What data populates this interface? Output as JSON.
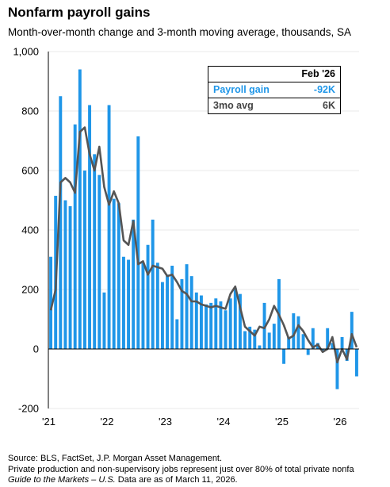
{
  "title": "Nonfarm payroll gains",
  "subtitle": "Month-over-month change and 3-month moving average, thousands, SA",
  "legend": {
    "header": "Feb '26",
    "rows": [
      {
        "label": "Payroll gain",
        "value": "-92K",
        "color": "#1f96e8"
      },
      {
        "label": "3mo avg",
        "value": "6K",
        "color": "#444444"
      }
    ]
  },
  "footer": {
    "line1": "Source: BLS, FactSet, J.P. Morgan Asset Management.",
    "line2": "Private production and non-supervisory jobs represent just over 80% of total private nonfa",
    "line3_italic": "Guide to the Markets – U.S.",
    "line3_rest": " Data are as of March 11, 2026."
  },
  "chart_data": {
    "type": "bar",
    "title": "Nonfarm payroll gains",
    "ylabel": "thousands",
    "ylim": [
      -200,
      1000
    ],
    "yticks": [
      -200,
      0,
      200,
      400,
      600,
      800,
      1000
    ],
    "ytick_labels": [
      "-200",
      "0",
      "200",
      "400",
      "600",
      "800",
      "1,000"
    ],
    "xtick_labels": [
      "'21",
      "'22",
      "'23",
      "'24",
      "'25",
      "'26"
    ],
    "start_month": "2021-01",
    "series": [
      {
        "name": "Payroll gain",
        "kind": "bar",
        "color": "#1f96e8",
        "values": [
          310,
          515,
          850,
          500,
          480,
          755,
          940,
          600,
          820,
          655,
          585,
          190,
          820,
          505,
          490,
          310,
          300,
          435,
          715,
          290,
          350,
          435,
          290,
          225,
          250,
          280,
          100,
          235,
          285,
          245,
          190,
          180,
          150,
          155,
          170,
          160,
          130,
          170,
          205,
          185,
          60,
          75,
          65,
          12,
          155,
          55,
          85,
          235,
          -50,
          40,
          120,
          110,
          50,
          -20,
          70,
          20,
          -5,
          70,
          20,
          -135,
          40,
          -40,
          125,
          -92
        ]
      },
      {
        "name": "3mo avg",
        "kind": "line",
        "color": "#555555",
        "values": [
          130,
          200,
          560,
          575,
          560,
          525,
          730,
          745,
          655,
          600,
          680,
          545,
          485,
          530,
          490,
          365,
          350,
          430,
          285,
          295,
          250,
          280,
          275,
          270,
          245,
          250,
          225,
          195,
          185,
          160,
          160,
          150,
          145,
          140,
          145,
          140,
          135,
          185,
          210,
          140,
          75,
          60,
          45,
          75,
          70,
          100,
          145,
          115,
          80,
          35,
          45,
          80,
          60,
          30,
          5,
          15,
          -10,
          0,
          40,
          -45,
          0,
          -35,
          50,
          6
        ]
      }
    ]
  }
}
